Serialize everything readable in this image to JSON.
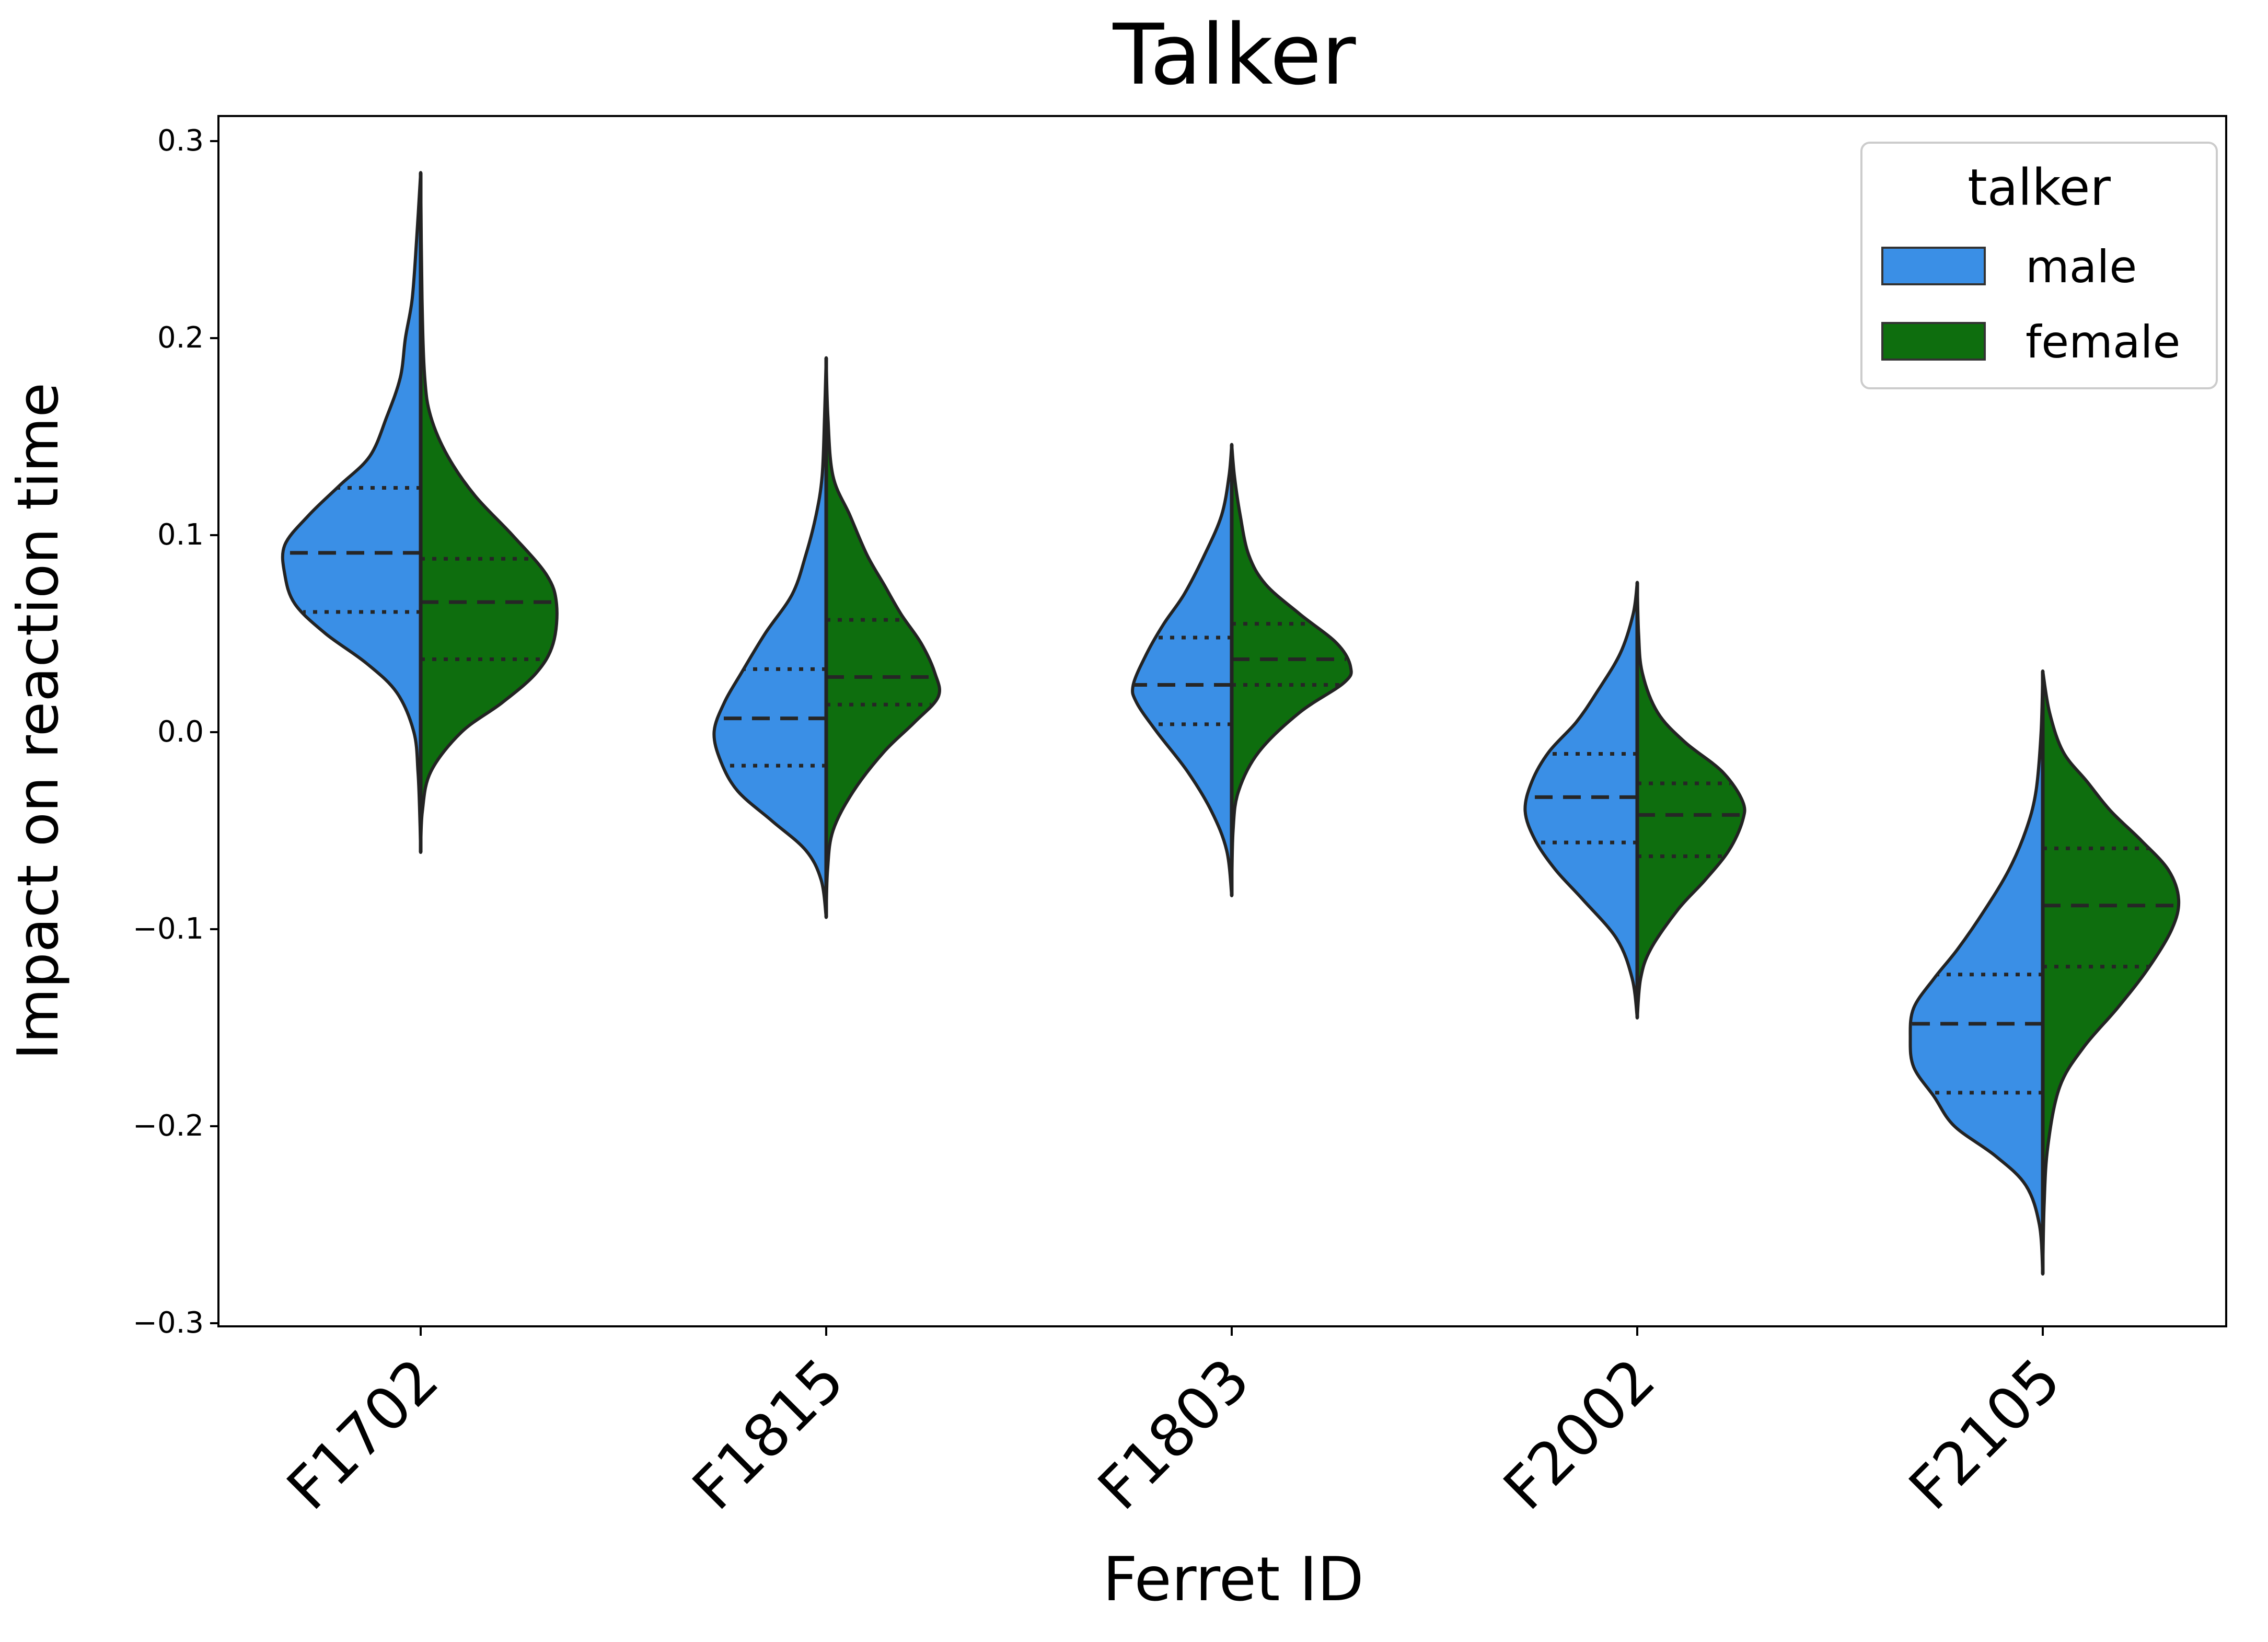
{
  "chart_data": {
    "type": "violin",
    "title": "Talker",
    "xlabel": "Ferret ID",
    "ylabel": "Impact on reaction time",
    "ylim": [
      -0.3,
      0.3
    ],
    "yticks": [
      0.3,
      0.2,
      0.1,
      0.0,
      -0.1,
      -0.2,
      -0.3
    ],
    "ytick_labels": [
      "0.3",
      "0.2",
      "0.1",
      "0.0",
      "−0.1",
      "−0.2",
      "−0.3"
    ],
    "categories": [
      "F1702",
      "F1815",
      "F1803",
      "F2002",
      "F2105"
    ],
    "split": true,
    "legend": {
      "title": "talker",
      "position": "top-right",
      "entries": [
        {
          "label": "male",
          "color": "#3a8fe6"
        },
        {
          "label": "female",
          "color": "#0e6e0e"
        }
      ]
    },
    "series": [
      {
        "name": "male",
        "side": "left",
        "color": "#3a8fe6",
        "groups": [
          {
            "min": -0.061,
            "max": 0.284,
            "q1": 0.061,
            "median": 0.091,
            "q3": 0.124,
            "density": [
              [
                -0.061,
                0.0
              ],
              [
                -0.04,
                0.003
              ],
              [
                -0.02,
                0.008
              ],
              [
                0.0,
                0.02
              ],
              [
                0.02,
                0.07
              ],
              [
                0.035,
                0.16
              ],
              [
                0.05,
                0.28
              ],
              [
                0.065,
                0.37
              ],
              [
                0.08,
                0.4
              ],
              [
                0.095,
                0.4
              ],
              [
                0.11,
                0.33
              ],
              [
                0.125,
                0.24
              ],
              [
                0.14,
                0.15
              ],
              [
                0.16,
                0.1
              ],
              [
                0.18,
                0.06
              ],
              [
                0.2,
                0.045
              ],
              [
                0.22,
                0.025
              ],
              [
                0.25,
                0.012
              ],
              [
                0.284,
                0.0
              ]
            ]
          },
          {
            "min": -0.094,
            "max": 0.19,
            "q1": -0.017,
            "median": 0.007,
            "q3": 0.032,
            "density": [
              [
                -0.094,
                0.0
              ],
              [
                -0.075,
                0.015
              ],
              [
                -0.06,
                0.06
              ],
              [
                -0.045,
                0.16
              ],
              [
                -0.03,
                0.26
              ],
              [
                -0.015,
                0.31
              ],
              [
                0.0,
                0.33
              ],
              [
                0.015,
                0.3
              ],
              [
                0.03,
                0.25
              ],
              [
                0.05,
                0.18
              ],
              [
                0.07,
                0.1
              ],
              [
                0.09,
                0.06
              ],
              [
                0.11,
                0.03
              ],
              [
                0.13,
                0.012
              ],
              [
                0.16,
                0.005
              ],
              [
                0.19,
                0.0
              ]
            ]
          },
          {
            "min": -0.083,
            "max": 0.146,
            "q1": 0.004,
            "median": 0.024,
            "q3": 0.048,
            "density": [
              [
                -0.083,
                0.0
              ],
              [
                -0.06,
                0.015
              ],
              [
                -0.04,
                0.06
              ],
              [
                -0.02,
                0.13
              ],
              [
                0.0,
                0.22
              ],
              [
                0.015,
                0.28
              ],
              [
                0.024,
                0.29
              ],
              [
                0.04,
                0.25
              ],
              [
                0.055,
                0.2
              ],
              [
                0.07,
                0.14
              ],
              [
                0.09,
                0.08
              ],
              [
                0.11,
                0.03
              ],
              [
                0.13,
                0.008
              ],
              [
                0.146,
                0.0
              ]
            ]
          },
          {
            "min": -0.145,
            "max": 0.076,
            "q1": -0.056,
            "median": -0.033,
            "q3": -0.011,
            "density": [
              [
                -0.145,
                0.0
              ],
              [
                -0.125,
                0.015
              ],
              [
                -0.105,
                0.06
              ],
              [
                -0.085,
                0.16
              ],
              [
                -0.07,
                0.24
              ],
              [
                -0.055,
                0.3
              ],
              [
                -0.04,
                0.33
              ],
              [
                -0.025,
                0.31
              ],
              [
                -0.01,
                0.26
              ],
              [
                0.005,
                0.18
              ],
              [
                0.02,
                0.12
              ],
              [
                0.04,
                0.05
              ],
              [
                0.06,
                0.012
              ],
              [
                0.076,
                0.0
              ]
            ]
          },
          {
            "min": -0.275,
            "max": 0.031,
            "q1": -0.183,
            "median": -0.148,
            "q3": -0.123,
            "density": [
              [
                -0.275,
                0.0
              ],
              [
                -0.25,
                0.01
              ],
              [
                -0.23,
                0.05
              ],
              [
                -0.215,
                0.14
              ],
              [
                -0.2,
                0.26
              ],
              [
                -0.185,
                0.32
              ],
              [
                -0.17,
                0.38
              ],
              [
                -0.155,
                0.39
              ],
              [
                -0.14,
                0.38
              ],
              [
                -0.125,
                0.32
              ],
              [
                -0.11,
                0.25
              ],
              [
                -0.09,
                0.17
              ],
              [
                -0.07,
                0.1
              ],
              [
                -0.05,
                0.05
              ],
              [
                -0.03,
                0.02
              ],
              [
                0.0,
                0.005
              ],
              [
                0.031,
                0.0
              ]
            ]
          }
        ]
      },
      {
        "name": "female",
        "side": "right",
        "color": "#0e6e0e",
        "groups": [
          {
            "min": -0.061,
            "max": 0.284,
            "q1": 0.037,
            "median": 0.066,
            "q3": 0.088,
            "density": [
              [
                -0.061,
                0.0
              ],
              [
                -0.04,
                0.005
              ],
              [
                -0.02,
                0.03
              ],
              [
                0.0,
                0.12
              ],
              [
                0.015,
                0.24
              ],
              [
                0.03,
                0.34
              ],
              [
                0.045,
                0.39
              ],
              [
                0.065,
                0.4
              ],
              [
                0.08,
                0.37
              ],
              [
                0.1,
                0.27
              ],
              [
                0.12,
                0.16
              ],
              [
                0.14,
                0.08
              ],
              [
                0.16,
                0.03
              ],
              [
                0.18,
                0.012
              ],
              [
                0.22,
                0.004
              ],
              [
                0.284,
                0.0
              ]
            ]
          },
          {
            "min": -0.094,
            "max": 0.19,
            "q1": 0.014,
            "median": 0.028,
            "q3": 0.057,
            "density": [
              [
                -0.094,
                0.0
              ],
              [
                -0.07,
                0.004
              ],
              [
                -0.05,
                0.02
              ],
              [
                -0.03,
                0.08
              ],
              [
                -0.01,
                0.17
              ],
              [
                0.005,
                0.26
              ],
              [
                0.018,
                0.33
              ],
              [
                0.03,
                0.32
              ],
              [
                0.045,
                0.28
              ],
              [
                0.06,
                0.22
              ],
              [
                0.075,
                0.17
              ],
              [
                0.09,
                0.12
              ],
              [
                0.11,
                0.07
              ],
              [
                0.13,
                0.02
              ],
              [
                0.16,
                0.005
              ],
              [
                0.19,
                0.0
              ]
            ]
          },
          {
            "min": -0.083,
            "max": 0.146,
            "q1": 0.024,
            "median": 0.037,
            "q3": 0.055,
            "density": [
              [
                -0.083,
                0.0
              ],
              [
                -0.05,
                0.004
              ],
              [
                -0.03,
                0.02
              ],
              [
                -0.01,
                0.08
              ],
              [
                0.01,
                0.2
              ],
              [
                0.025,
                0.33
              ],
              [
                0.033,
                0.35
              ],
              [
                0.045,
                0.31
              ],
              [
                0.06,
                0.2
              ],
              [
                0.075,
                0.1
              ],
              [
                0.09,
                0.05
              ],
              [
                0.11,
                0.025
              ],
              [
                0.13,
                0.008
              ],
              [
                0.146,
                0.0
              ]
            ]
          },
          {
            "min": -0.145,
            "max": 0.076,
            "q1": -0.063,
            "median": -0.042,
            "q3": -0.026,
            "density": [
              [
                -0.145,
                0.0
              ],
              [
                -0.125,
                0.01
              ],
              [
                -0.11,
                0.04
              ],
              [
                -0.09,
                0.12
              ],
              [
                -0.075,
                0.2
              ],
              [
                -0.06,
                0.27
              ],
              [
                -0.045,
                0.31
              ],
              [
                -0.035,
                0.31
              ],
              [
                -0.02,
                0.25
              ],
              [
                -0.005,
                0.14
              ],
              [
                0.01,
                0.06
              ],
              [
                0.03,
                0.015
              ],
              [
                0.05,
                0.004
              ],
              [
                0.076,
                0.0
              ]
            ]
          },
          {
            "min": -0.275,
            "max": 0.031,
            "q1": -0.119,
            "median": -0.088,
            "q3": -0.059,
            "density": [
              [
                -0.275,
                0.0
              ],
              [
                -0.24,
                0.004
              ],
              [
                -0.21,
                0.015
              ],
              [
                -0.18,
                0.05
              ],
              [
                -0.16,
                0.12
              ],
              [
                -0.14,
                0.22
              ],
              [
                -0.12,
                0.31
              ],
              [
                -0.1,
                0.38
              ],
              [
                -0.085,
                0.4
              ],
              [
                -0.07,
                0.37
              ],
              [
                -0.055,
                0.29
              ],
              [
                -0.04,
                0.2
              ],
              [
                -0.025,
                0.13
              ],
              [
                -0.01,
                0.06
              ],
              [
                0.01,
                0.02
              ],
              [
                0.031,
                0.0
              ]
            ]
          }
        ]
      }
    ]
  }
}
